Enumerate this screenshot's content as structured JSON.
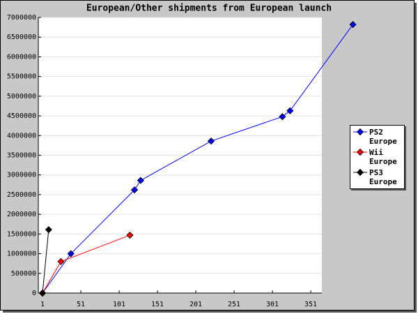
{
  "chart_data": {
    "type": "line",
    "title": "European/Other shipments from European launch",
    "series": [
      {
        "name": "PS2 Europe",
        "color": "#0000ff",
        "x": [
          1,
          38,
          121,
          129,
          221,
          314,
          324,
          406
        ],
        "values": [
          0,
          1000000,
          2620000,
          2860000,
          3860000,
          4480000,
          4630000,
          6820000
        ]
      },
      {
        "name": "Wii Europe",
        "color": "#ff0000",
        "x": [
          1,
          25,
          115
        ],
        "values": [
          0,
          800000,
          1470000
        ]
      },
      {
        "name": "PS3 Europe",
        "color": "#000000",
        "x": [
          1,
          9
        ],
        "values": [
          0,
          1610000
        ]
      }
    ],
    "xlim": [
      -4.5,
      365.5
    ],
    "xticks": [
      1,
      51,
      101,
      151,
      201,
      251,
      301,
      351
    ],
    "ylim": [
      0,
      7000000
    ],
    "yticks": [
      0,
      500000,
      1000000,
      1500000,
      2000000,
      2500000,
      3000000,
      3500000,
      4000000,
      4500000,
      5000000,
      5500000,
      6000000,
      6500000,
      7000000
    ],
    "grid": true
  }
}
